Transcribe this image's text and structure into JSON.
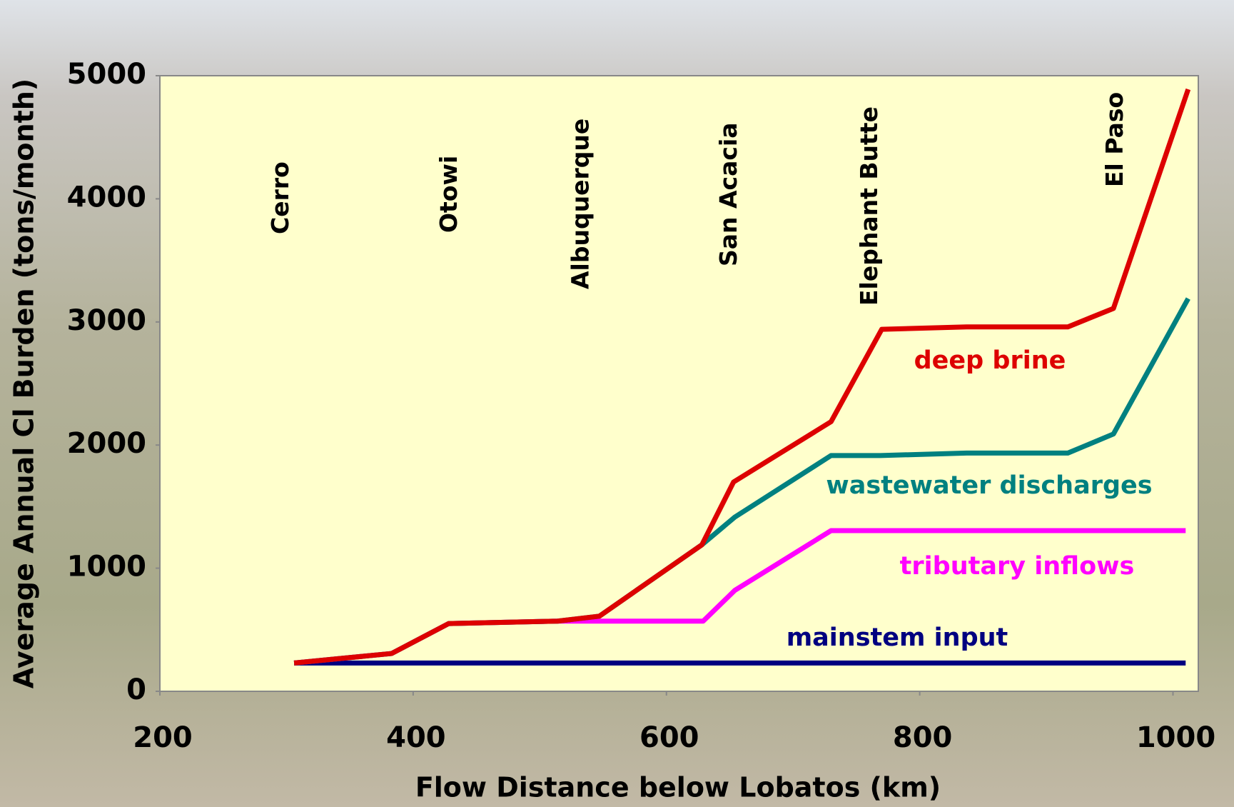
{
  "chart_data": {
    "type": "line",
    "x_label": "Flow Distance below Lobatos (km)",
    "y_label": "Average Annual Cl Burden (tons/month)",
    "xlim": [
      200,
      1020
    ],
    "xticks": [
      200,
      400,
      600,
      800,
      1000
    ],
    "ylim": [
      0,
      5000
    ],
    "yticks": [
      0,
      1000,
      2000,
      3000,
      4000,
      5000
    ],
    "grid": false,
    "stations": [
      {
        "label": "Cerro",
        "x": 296
      },
      {
        "label": "Otowi",
        "x": 429
      },
      {
        "label": "Albuquerque",
        "x": 533
      },
      {
        "label": "San Acacia",
        "x": 650
      },
      {
        "label": "Elephant Butte",
        "x": 761
      },
      {
        "label": "El Paso",
        "x": 955
      }
    ],
    "series": [
      {
        "name": "mainstem input",
        "color": "#000080",
        "x": [
          306,
          1010
        ],
        "values": [
          230,
          230
        ]
      },
      {
        "name": "tributary inflows",
        "color": "#ff00ff",
        "x": [
          306,
          383,
          428,
          514,
          629,
          654,
          730,
          1010
        ],
        "values": [
          230,
          307,
          550,
          570,
          570,
          820,
          1305,
          1305
        ]
      },
      {
        "name": "wastewater discharges",
        "color": "#008080",
        "x": [
          306,
          383,
          428,
          514,
          547,
          628,
          654,
          730,
          769,
          837,
          917,
          953,
          1012
        ],
        "values": [
          230,
          307,
          550,
          570,
          610,
          1190,
          1415,
          1915,
          1915,
          1935,
          1935,
          2090,
          3190
        ]
      },
      {
        "name": "deep brine",
        "color": "#dd0000",
        "x": [
          306,
          383,
          428,
          514,
          547,
          628,
          653,
          730,
          770,
          837,
          917,
          953,
          1012
        ],
        "values": [
          230,
          307,
          550,
          570,
          610,
          1190,
          1700,
          2190,
          2940,
          2960,
          2960,
          3110,
          4890
        ]
      }
    ]
  }
}
